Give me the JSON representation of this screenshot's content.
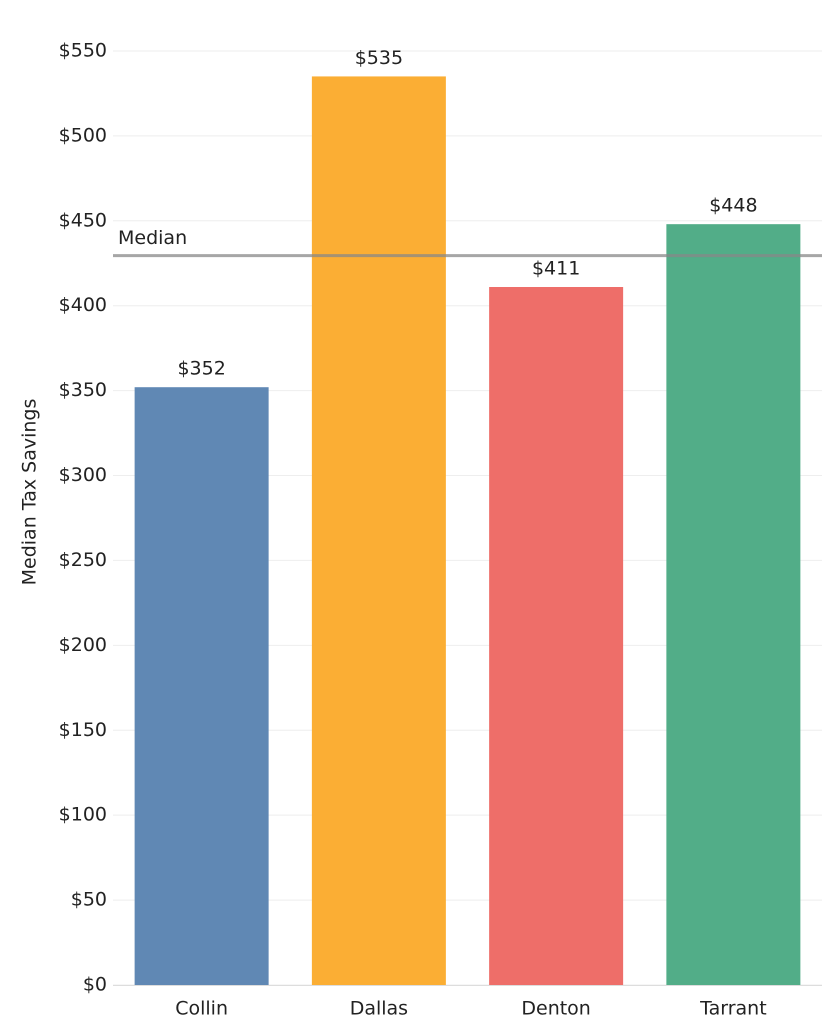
{
  "chart_data": {
    "type": "bar",
    "y_label": "Median Tax Savings",
    "categories": [
      "Collin",
      "Dallas",
      "Denton",
      "Tarrant"
    ],
    "values": [
      352,
      535,
      411,
      448
    ],
    "value_labels": [
      "$352",
      "$535",
      "$411",
      "$448"
    ],
    "colors": [
      "#6088b4",
      "#fbae34",
      "#ee6e69",
      "#52ad88"
    ],
    "ylim": [
      0,
      580
    ],
    "yticks": [
      {
        "value": 0,
        "label": "$0"
      },
      {
        "value": 50,
        "label": "$50"
      },
      {
        "value": 100,
        "label": "$100"
      },
      {
        "value": 150,
        "label": "$150"
      },
      {
        "value": 200,
        "label": "$200"
      },
      {
        "value": 250,
        "label": "$250"
      },
      {
        "value": 300,
        "label": "$300"
      },
      {
        "value": 350,
        "label": "$350"
      },
      {
        "value": 400,
        "label": "$400"
      },
      {
        "value": 450,
        "label": "$450"
      },
      {
        "value": 500,
        "label": "$500"
      },
      {
        "value": 550,
        "label": "$550"
      }
    ],
    "grid": true,
    "reference_line": {
      "label": "Median",
      "value": 429.5
    }
  }
}
